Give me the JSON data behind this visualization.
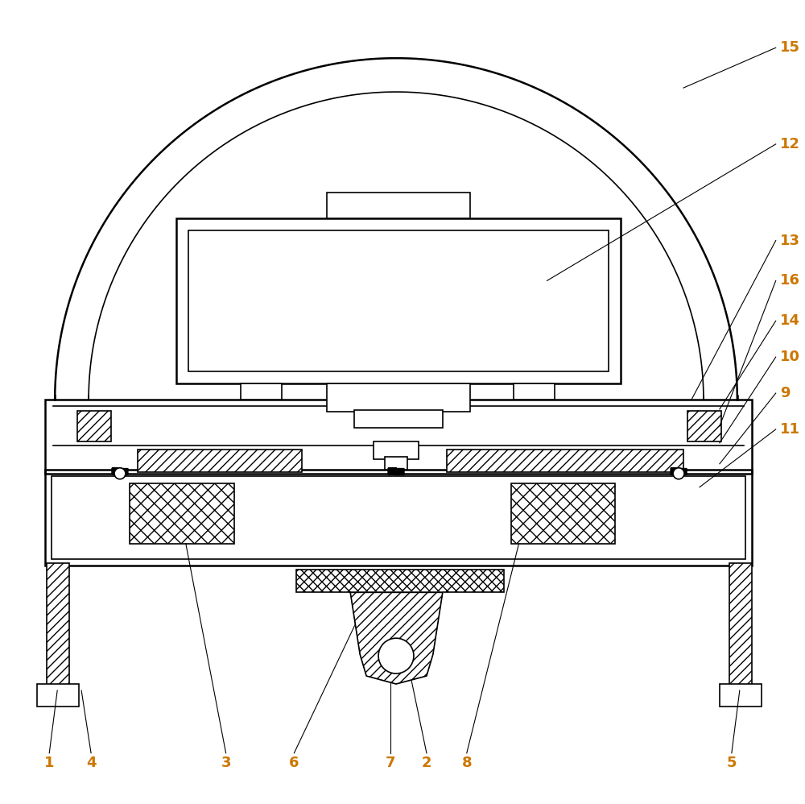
{
  "bg_color": "#ffffff",
  "line_color": "#000000",
  "label_color": "#cc7700",
  "fig_width": 10.0,
  "fig_height": 9.98,
  "lw_thick": 1.8,
  "lw_med": 1.2,
  "lw_thin": 0.8,
  "font_size": 13
}
